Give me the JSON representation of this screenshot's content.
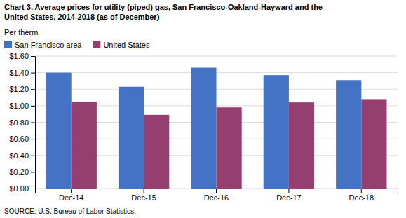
{
  "chart_data": {
    "type": "bar",
    "title": [
      "Chart 3. Average prices for utility (piped) gas, San Francisco-Oakland-Hayward and the",
      "United States, 2014-2018  (as of December)"
    ],
    "y_label": "Per therm",
    "annotations": [
      "SOURCE: U.S. Bureau of Labor Statistics."
    ],
    "categories": [
      "Dec-14",
      "Dec-15",
      "Dec-16",
      "Dec-17",
      "Dec-18"
    ],
    "series": [
      {
        "name": "San Francisco area",
        "color": "#4472C4",
        "values": [
          1.4,
          1.23,
          1.46,
          1.37,
          1.31
        ]
      },
      {
        "name": "United States",
        "color": "#943F6F",
        "values": [
          1.05,
          0.89,
          0.98,
          1.04,
          1.08
        ]
      }
    ],
    "ylim": [
      0.0,
      1.6
    ],
    "yticks": [
      {
        "value": 0.0,
        "label": "$0.00"
      },
      {
        "value": 0.2,
        "label": "$0.20"
      },
      {
        "value": 0.4,
        "label": "$0.40"
      },
      {
        "value": 0.6,
        "label": "$0.60"
      },
      {
        "value": 0.8,
        "label": "$0.80"
      },
      {
        "value": 1.0,
        "label": "$1.00"
      },
      {
        "value": 1.2,
        "label": "$1.20"
      },
      {
        "value": 1.4,
        "label": "$1.40"
      },
      {
        "value": 1.6,
        "label": "$1.60"
      }
    ],
    "grid": true,
    "legend": "upper left"
  }
}
